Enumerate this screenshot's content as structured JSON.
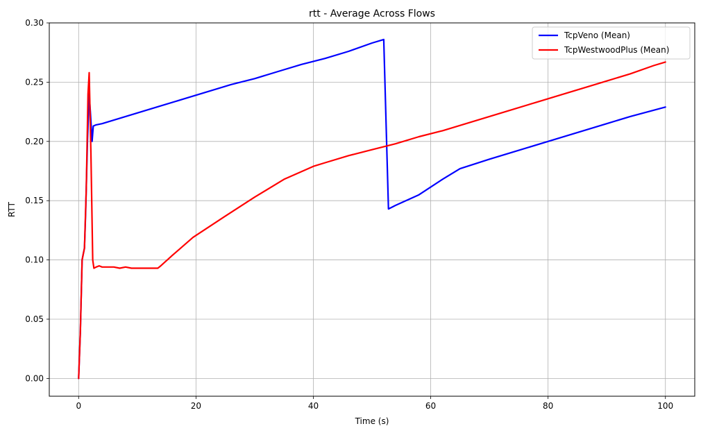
{
  "chart_data": {
    "type": "line",
    "title": "rtt - Average Across Flows",
    "xlabel": "Time (s)",
    "ylabel": "RTT",
    "xlim": [
      -5,
      105
    ],
    "ylim": [
      -0.015,
      0.3
    ],
    "grid": true,
    "legend_position": "top-right",
    "xticks": [
      0,
      20,
      40,
      60,
      80,
      100
    ],
    "xtick_labels": [
      "0",
      "20",
      "40",
      "60",
      "80",
      "100"
    ],
    "yticks": [
      0.0,
      0.05,
      0.1,
      0.15,
      0.2,
      0.25,
      0.3
    ],
    "ytick_labels": [
      "0.00",
      "0.05",
      "0.10",
      "0.15",
      "0.20",
      "0.25",
      "0.30"
    ],
    "series": [
      {
        "name": "TcpVeno (Mean)",
        "color": "#0000ff",
        "x": [
          0,
          0.3,
          0.6,
          0.8,
          1.0,
          1.2,
          1.5,
          1.8,
          2.0,
          2.3,
          2.5,
          3.0,
          4,
          6,
          8,
          10,
          14,
          18,
          22,
          26,
          30,
          34,
          38,
          42,
          46,
          50,
          52.0,
          52.8,
          54,
          58,
          62,
          65,
          70,
          74,
          80,
          86,
          90,
          94,
          100
        ],
        "y": [
          0.0,
          0.04,
          0.1,
          0.105,
          0.11,
          0.14,
          0.2,
          0.24,
          0.225,
          0.2,
          0.213,
          0.214,
          0.215,
          0.218,
          0.221,
          0.224,
          0.23,
          0.236,
          0.242,
          0.248,
          0.253,
          0.259,
          0.265,
          0.27,
          0.276,
          0.283,
          0.286,
          0.143,
          0.146,
          0.155,
          0.168,
          0.177,
          0.185,
          0.191,
          0.2,
          0.209,
          0.215,
          0.221,
          0.229
        ]
      },
      {
        "name": "TcpWestwoodPlus (Mean)",
        "color": "#ff0000",
        "x": [
          0,
          0.3,
          0.6,
          0.8,
          1.0,
          1.3,
          1.6,
          1.8,
          2.1,
          2.4,
          2.6,
          3.0,
          3.5,
          4,
          5,
          6,
          7,
          8,
          9,
          10,
          11,
          12,
          13,
          13.5,
          14,
          16,
          19.5,
          25,
          30,
          35,
          40,
          42,
          46,
          50,
          54,
          58,
          62,
          66,
          70,
          74,
          78,
          82,
          86,
          90,
          94,
          98,
          100
        ],
        "y": [
          0.0,
          0.04,
          0.1,
          0.105,
          0.11,
          0.16,
          0.24,
          0.258,
          0.19,
          0.1,
          0.093,
          0.094,
          0.095,
          0.094,
          0.094,
          0.094,
          0.093,
          0.094,
          0.093,
          0.093,
          0.093,
          0.093,
          0.093,
          0.093,
          0.095,
          0.104,
          0.119,
          0.137,
          0.153,
          0.168,
          0.179,
          0.182,
          0.188,
          0.193,
          0.198,
          0.204,
          0.209,
          0.215,
          0.221,
          0.227,
          0.233,
          0.239,
          0.245,
          0.251,
          0.257,
          0.264,
          0.267
        ]
      }
    ]
  }
}
